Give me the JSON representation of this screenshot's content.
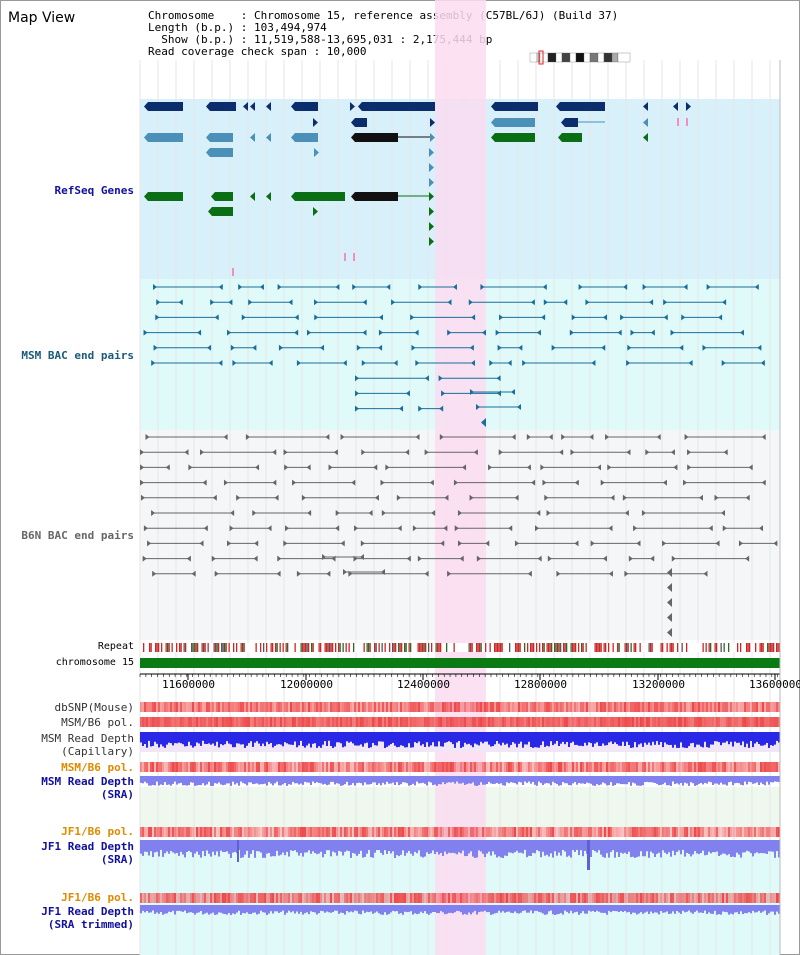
{
  "panel_title": "Map View",
  "header": {
    "chromosome_line": "Chromosome    : Chromosome 15, reference assembly (C57BL/6J) (Build 37)",
    "length_line": "Length (b.p.) : 103,494,974",
    "show_line": "  Show (b.p.) : 11,519,588-13,695,031 : 2,175,444 bp",
    "coverage_line": "Read coverage check span : 10,000"
  },
  "tracks": {
    "refseq": "RefSeq Genes",
    "msm_bac": "MSM BAC end pairs",
    "b6n_bac": "B6N BAC end pairs",
    "repeat": "Repeat",
    "chromosome": "chromosome 15",
    "dbsnp": "dbSNP(Mouse)",
    "msm_b6_pol": "MSM/B6 pol.",
    "msm_read_cap_1": "MSM Read Depth",
    "msm_read_cap_2": "(Capillary)",
    "msm_b6_pol2": "MSM/B6 pol.",
    "msm_read_sra_1": "MSM Read Depth",
    "msm_read_sra_2": "(SRA)",
    "jf1_b6_pol": "JF1/B6 pol.",
    "jf1_read_sra_1": "JF1 Read Depth",
    "jf1_read_sra_2": "(SRA)",
    "jf1_b6_pol2": "JF1/B6 pol.",
    "jf1_read_trim_1": "JF1 Read Depth",
    "jf1_read_trim_2": "(SRA trimmed)"
  },
  "axis_ticks": [
    "11600000",
    "12000000",
    "12400000",
    "12800000",
    "13200000",
    "13600000"
  ],
  "colors": {
    "refseq_bg": "#d8f0fa",
    "msm_bg": "#e0fafa",
    "b6n_bg": "#f4f6f8",
    "highlight": "#fadcf0",
    "gene_dark": "#0c2d6b",
    "gene_mid": "#4a90b8",
    "gene_green": "#0a6e14",
    "msm_line": "#1a6e9a",
    "b6n_line": "#666666",
    "chrom_green": "#0a7a14",
    "repeat_red": "#c82828",
    "depth_blue": "#2828e6",
    "depth_light": "#8080ee",
    "pol_red": "#ee4848",
    "label_blue": "#1010a0",
    "label_orange": "#e08a00",
    "label_teal": "#1a5a7a"
  }
}
